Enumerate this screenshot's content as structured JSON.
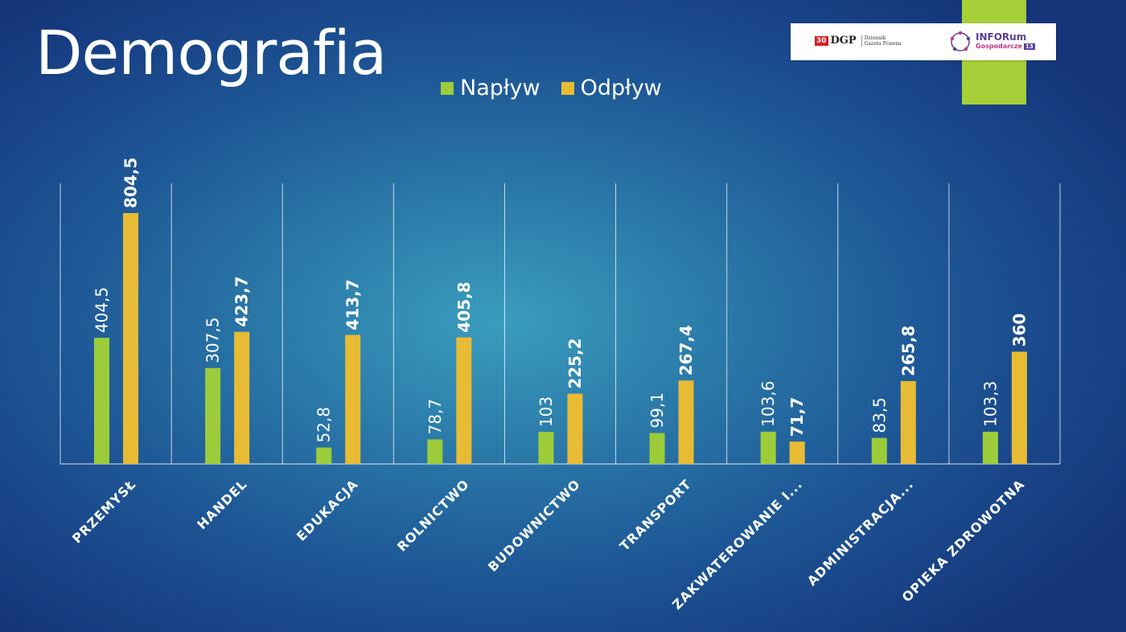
{
  "slide": {
    "title": "Demografia"
  },
  "logos": {
    "dgp_badge": "30",
    "dgp_letters": "DGP",
    "dgp_line1": "Dziennik",
    "dgp_line2": "Gazeta Prawna",
    "inforum_line1": "INFORum",
    "inforum_line2": "Gospodarcze",
    "inforum_num": "13"
  },
  "colors": {
    "naplyw": "#9ccc3a",
    "odplyw": "#e8bb34",
    "green_tab": "#a6cf38"
  },
  "chart_data": {
    "type": "bar",
    "categories": [
      "PRZEMYSŁ",
      "HANDEL",
      "EDUKACJA",
      "ROLNICTWO",
      "BUDOWNICTWO",
      "TRANSPORT",
      "ZAKWATEROWANIE I...",
      "ADMINISTRACJA...",
      "OPIEKA ZDROWOTNA"
    ],
    "series": [
      {
        "name": "Napływ",
        "values": [
          404.5,
          307.5,
          52.8,
          78.7,
          103,
          99.1,
          103.6,
          83.5,
          103.3
        ],
        "labels": [
          "404,5",
          "307,5",
          "52,8",
          "78,7",
          "103",
          "99,1",
          "103,6",
          "83,5",
          "103,3"
        ]
      },
      {
        "name": "Odpływ",
        "values": [
          804.5,
          423.7,
          413.7,
          405.8,
          225.2,
          267.4,
          71.7,
          265.8,
          360
        ],
        "labels": [
          "804,5",
          "423,7",
          "413,7",
          "405,8",
          "225,2",
          "267,4",
          "71,7",
          "265,8",
          "360"
        ]
      }
    ],
    "title": "Demografia",
    "xlabel": "",
    "ylabel": "",
    "ylim": [
      0,
      804.5
    ],
    "grid": "vertical category separators",
    "legend_placement": "top"
  }
}
